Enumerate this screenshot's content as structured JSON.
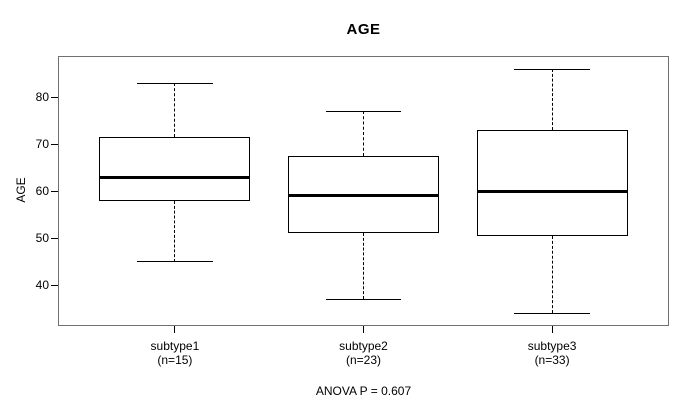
{
  "chart_data": {
    "type": "boxplot",
    "title": "AGE",
    "ylabel": "AGE",
    "xlabel": "",
    "annotation": "ANOVA P = 0.607",
    "categories": [
      "subtype1",
      "subtype2",
      "subtype3"
    ],
    "groups": [
      {
        "label": "subtype1",
        "n_label": "(n=15)",
        "n": 15,
        "whisker_low": 45,
        "q1": 58,
        "median": 63,
        "q3": 71.5,
        "whisker_high": 83
      },
      {
        "label": "subtype2",
        "n_label": "(n=23)",
        "n": 23,
        "whisker_low": 37,
        "q1": 51,
        "median": 59,
        "q3": 67.5,
        "whisker_high": 77
      },
      {
        "label": "subtype3",
        "n_label": "(n=33)",
        "n": 33,
        "whisker_low": 34,
        "q1": 50.5,
        "median": 60,
        "q3": 73,
        "whisker_high": 86
      }
    ],
    "yticks": [
      80,
      70,
      60,
      50,
      40
    ],
    "ylim": [
      31.3,
      88.8
    ],
    "xlim": [
      0.38,
      3.62
    ],
    "box_width_units": 0.8,
    "cap_width_units": 0.4,
    "grid": false,
    "legend": "none",
    "colors": {
      "line": "#000000",
      "frame": "#707070",
      "text": "#000000",
      "background": "#ffffff"
    }
  }
}
